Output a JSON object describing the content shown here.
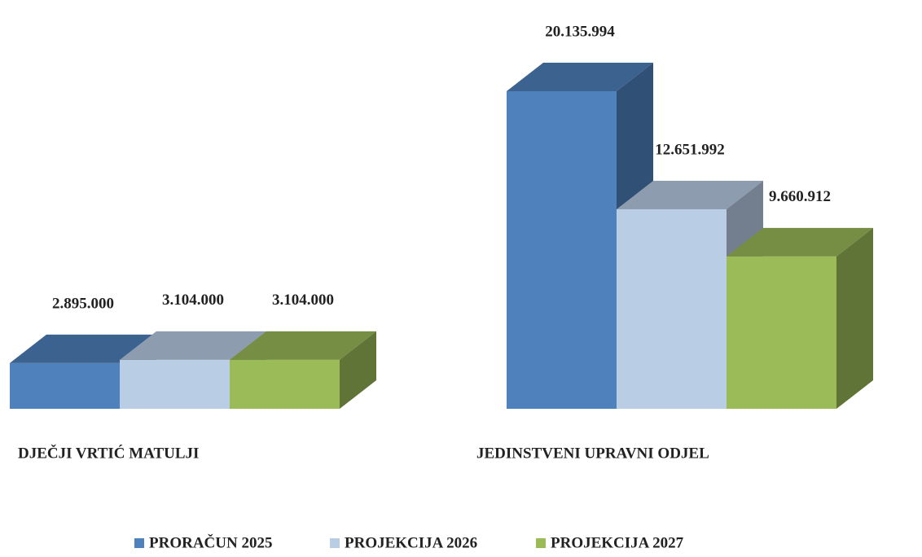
{
  "chart_data": {
    "type": "bar3d",
    "categories": [
      "DJEČJI VRTIĆ MATULJI",
      "JEDINSTVENI UPRAVNI ODJEL"
    ],
    "series": [
      {
        "name": "PRORAČUN 2025",
        "color": "#4f81bd",
        "values": [
          2895000,
          20135994
        ],
        "value_labels": [
          "2.895.000",
          "20.135.994"
        ]
      },
      {
        "name": "PROJEKCIJA 2026",
        "color": "#b9cde5",
        "values": [
          3104000,
          12651992
        ],
        "value_labels": [
          "3.104.000",
          "12.651.992"
        ]
      },
      {
        "name": "PROJEKCIJA 2027",
        "color": "#9bbb59",
        "values": [
          3104000,
          9660912
        ],
        "value_labels": [
          "3.104.000",
          "9.660.912"
        ]
      }
    ],
    "legend": "bottom"
  }
}
